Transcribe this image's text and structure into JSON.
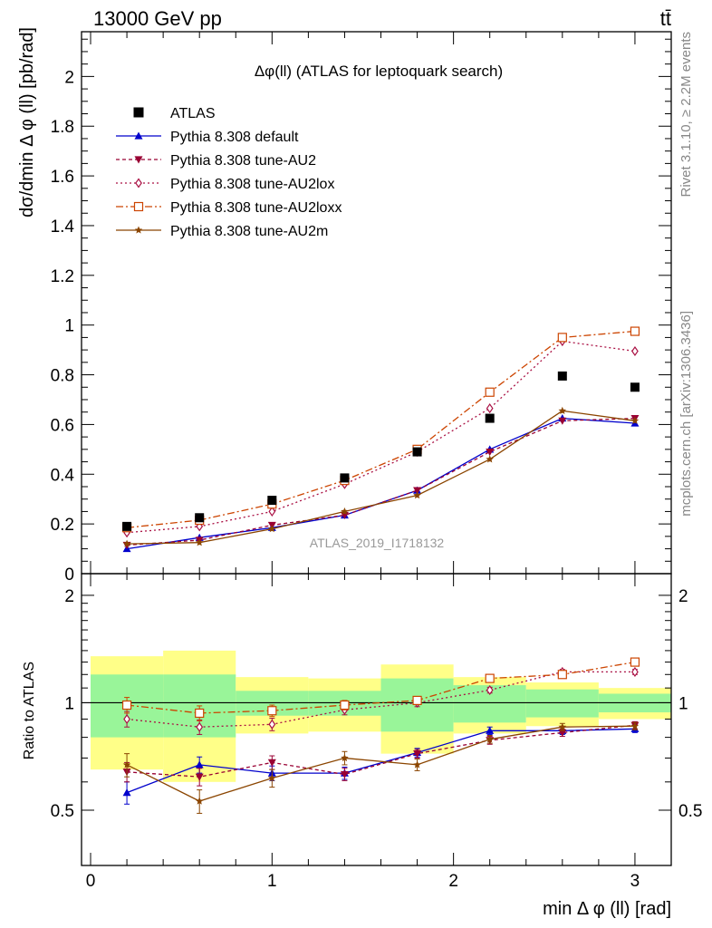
{
  "header": {
    "left": "13000 GeV pp",
    "right": "tt̄"
  },
  "side_text": {
    "upper": "Rivet 3.1.10, ≥ 2.2M events",
    "lower": "mcplots.cern.ch [arXiv:1306.3436]"
  },
  "watermark": "ATLAS_2019_I1718132",
  "chart_data": {
    "type": "line",
    "title": "Δφ(ll) (ATLAS for leptoquark search)",
    "xlabel": "min Δ φ (ll) [rad]",
    "ylabel": "dσ/dmin Δ φ (ll) [pb/rad]",
    "ratio_ylabel": "Ratio to ATLAS",
    "xlim": [
      -0.05,
      3.2
    ],
    "ylim": [
      0,
      2.18
    ],
    "ratio_ylim": [
      0.35,
      2.3
    ],
    "grid": false,
    "legend_position": "top-left",
    "x_ticks": [
      "0",
      "1",
      "2",
      "3"
    ],
    "y_ticks": [
      "0",
      "0.2",
      "0.4",
      "0.6",
      "0.8",
      "1",
      "1.2",
      "1.4",
      "1.6",
      "1.8",
      "2"
    ],
    "ratio_ticks": [
      "0.5",
      "1",
      "2"
    ],
    "x": [
      0.2,
      0.6,
      1.0,
      1.4,
      1.8,
      2.2,
      2.6,
      3.0
    ],
    "bin_edges": [
      0,
      0.4,
      0.8,
      1.2,
      1.6,
      2.0,
      2.4,
      2.8,
      3.2
    ],
    "data": {
      "name": "ATLAS",
      "color": "#000000",
      "values": [
        0.19,
        0.225,
        0.295,
        0.385,
        0.49,
        0.625,
        0.795,
        0.75
      ],
      "band_inner": [
        0.2,
        0.2,
        0.08,
        0.08,
        0.17,
        0.12,
        0.09,
        0.06
      ],
      "band_outer": [
        0.35,
        0.4,
        0.18,
        0.17,
        0.28,
        0.18,
        0.14,
        0.1
      ]
    },
    "series": [
      {
        "name": "Pythia 8.308 default",
        "color": "#0000cc",
        "dash": "",
        "marker": "triangle-up",
        "values": [
          0.1,
          0.145,
          0.185,
          0.235,
          0.335,
          0.5,
          0.625,
          0.605
        ],
        "ratio": [
          0.56,
          0.67,
          0.635,
          0.635,
          0.725,
          0.835,
          0.835,
          0.845
        ],
        "ratio_err": [
          0.04,
          0.035,
          0.03,
          0.025,
          0.02,
          0.02,
          0.02,
          0.02
        ]
      },
      {
        "name": "Pythia 8.308 tune-AU2",
        "color": "#990033",
        "dash": "4,3",
        "marker": "triangle-down",
        "values": [
          0.115,
          0.135,
          0.195,
          0.235,
          0.335,
          0.49,
          0.615,
          0.625
        ],
        "ratio": [
          0.64,
          0.62,
          0.68,
          0.63,
          0.72,
          0.785,
          0.825,
          0.865
        ],
        "ratio_err": [
          0.04,
          0.035,
          0.03,
          0.025,
          0.02,
          0.02,
          0.02,
          0.02
        ]
      },
      {
        "name": "Pythia 8.308 tune-AU2lox",
        "color": "#aa1144",
        "dash": "2,3",
        "marker": "diamond-open",
        "values": [
          0.165,
          0.19,
          0.25,
          0.36,
          0.49,
          0.665,
          0.935,
          0.895
        ],
        "ratio": [
          0.9,
          0.855,
          0.87,
          0.955,
          1.0,
          1.085,
          1.22,
          1.22
        ],
        "ratio_err": [
          0.045,
          0.04,
          0.035,
          0.03,
          0.025,
          0.02,
          0.02,
          0.02
        ]
      },
      {
        "name": "Pythia 8.308 tune-AU2loxx",
        "color": "#cc4400",
        "dash": "8,3,2,3",
        "marker": "square-open",
        "values": [
          0.185,
          0.215,
          0.28,
          0.375,
          0.5,
          0.73,
          0.95,
          0.975
        ],
        "ratio": [
          0.985,
          0.935,
          0.95,
          0.985,
          1.015,
          1.17,
          1.2,
          1.3
        ],
        "ratio_err": [
          0.05,
          0.045,
          0.035,
          0.03,
          0.025,
          0.02,
          0.02,
          0.02
        ]
      },
      {
        "name": "Pythia 8.308 tune-AU2m",
        "color": "#8b4500",
        "dash": "",
        "marker": "star",
        "values": [
          0.12,
          0.125,
          0.18,
          0.25,
          0.315,
          0.46,
          0.655,
          0.615
        ],
        "ratio": [
          0.67,
          0.53,
          0.615,
          0.7,
          0.67,
          0.79,
          0.855,
          0.86
        ],
        "ratio_err": [
          0.05,
          0.04,
          0.035,
          0.03,
          0.025,
          0.02,
          0.02,
          0.02
        ]
      }
    ]
  }
}
